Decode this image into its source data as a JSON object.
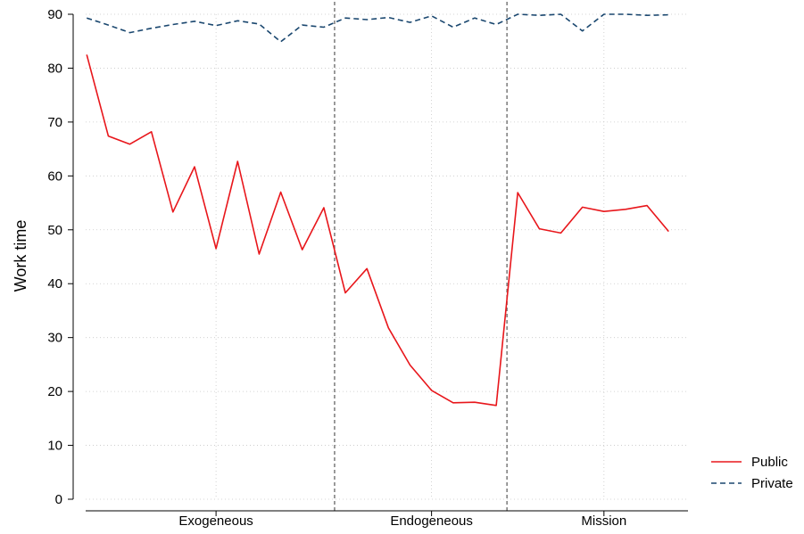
{
  "chart_data": {
    "type": "line",
    "ylabel": "Work time",
    "xlabel": "",
    "ylim": [
      0,
      90
    ],
    "yticks": [
      0,
      10,
      20,
      30,
      40,
      50,
      60,
      70,
      80,
      90
    ],
    "x": [
      1,
      2,
      3,
      4,
      5,
      6,
      7,
      8,
      9,
      10,
      11,
      12,
      13,
      14,
      15,
      16,
      17,
      18,
      19,
      20,
      21,
      22,
      23,
      24,
      25,
      26,
      27,
      28
    ],
    "xlim": [
      0.95,
      28.9
    ],
    "x_groups": [
      {
        "label": "Exogeneous",
        "center": 7
      },
      {
        "label": "Endogeneous",
        "center": 17
      },
      {
        "label": "Mission",
        "center": 25
      }
    ],
    "dividers": [
      12.5,
      20.5
    ],
    "grid": true,
    "legend_position": "bottom-right",
    "series": [
      {
        "name": "Public",
        "color": "#e8161b",
        "dash": "solid",
        "values": [
          82.5,
          67.4,
          65.9,
          68.2,
          53.3,
          61.7,
          46.5,
          62.7,
          45.5,
          57.0,
          46.3,
          54.1,
          38.3,
          42.8,
          31.8,
          24.9,
          20.2,
          17.9,
          18.0,
          17.4,
          56.9,
          50.2,
          49.4,
          54.2,
          53.4,
          53.8,
          54.5,
          49.7
        ]
      },
      {
        "name": "Private",
        "color": "#1a476f",
        "dash": "dashed",
        "values": [
          89.3,
          88.0,
          86.6,
          87.4,
          88.1,
          88.7,
          87.9,
          88.8,
          88.2,
          84.9,
          88.0,
          87.6,
          89.3,
          89.0,
          89.4,
          88.5,
          89.7,
          87.6,
          89.3,
          88.1,
          90.0,
          89.8,
          90.0,
          86.9,
          90.0,
          90.0,
          89.8,
          89.9
        ]
      }
    ]
  }
}
